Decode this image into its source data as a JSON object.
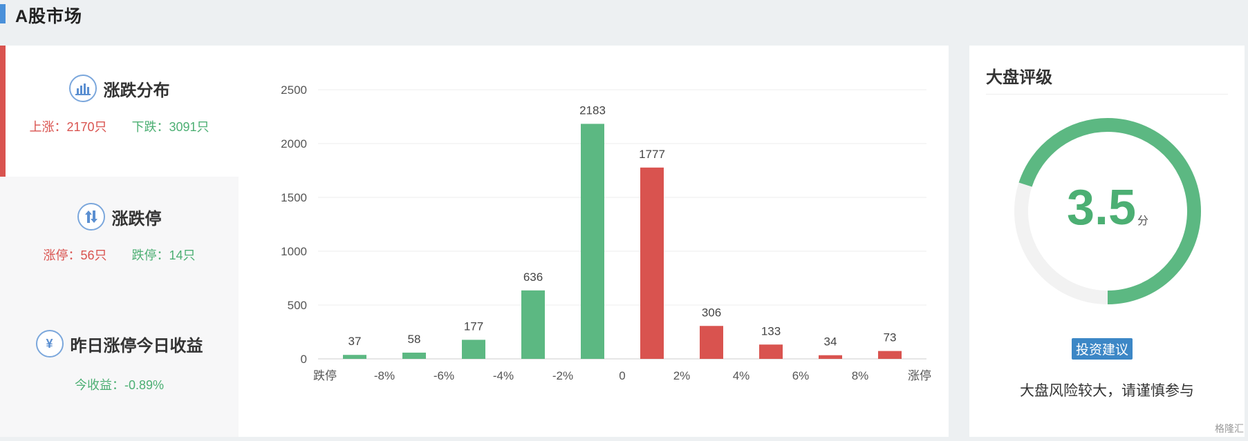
{
  "header": {
    "title": "A股市场"
  },
  "sidebar": {
    "cards": [
      {
        "title": "涨跌分布",
        "icon": "bar-chart-icon",
        "stats": [
          {
            "label": "上涨：",
            "value": "2170只",
            "color": "#d9534f"
          },
          {
            "label": "下跌：",
            "value": "3091只",
            "color": "#4caf73"
          }
        ]
      },
      {
        "title": "涨跌停",
        "icon": "up-down-arrows-icon",
        "stats": [
          {
            "label": "涨停：",
            "value": "56只",
            "color": "#d9534f"
          },
          {
            "label": "跌停：",
            "value": "14只",
            "color": "#4caf73"
          }
        ]
      },
      {
        "title": "昨日涨停今日收益",
        "icon": "yen-icon",
        "stats": [
          {
            "label": "今收益：",
            "value": "-0.89%",
            "color": "#4caf73"
          }
        ]
      }
    ]
  },
  "chart_data": {
    "type": "bar",
    "categories": [
      "跌停",
      "-8%",
      "-6%",
      "-4%",
      "-2%",
      "0",
      "2%",
      "4%",
      "6%",
      "8%",
      "涨停"
    ],
    "bars": [
      {
        "value": 37,
        "color": "#5cb882"
      },
      {
        "value": 58,
        "color": "#5cb882"
      },
      {
        "value": 177,
        "color": "#5cb882"
      },
      {
        "value": 636,
        "color": "#5cb882"
      },
      {
        "value": 2183,
        "color": "#5cb882"
      },
      {
        "value": 1777,
        "color": "#d9534f"
      },
      {
        "value": 306,
        "color": "#d9534f"
      },
      {
        "value": 133,
        "color": "#d9534f"
      },
      {
        "value": 34,
        "color": "#d9534f"
      },
      {
        "value": 73,
        "color": "#d9534f"
      }
    ],
    "yticks": [
      0,
      500,
      1000,
      1500,
      2000,
      2500
    ],
    "ylim": [
      0,
      2500
    ],
    "grid": true
  },
  "rating": {
    "title": "大盘评级",
    "score": "3.5",
    "unit": "分",
    "score_value": 3.5,
    "score_max": 5,
    "advice_label": "投资建议",
    "advice_text": "大盘风险较大，请谨慎参与",
    "gauge_color": "#5cb882",
    "track_color": "#f2f2f2"
  },
  "watermark": "格隆汇"
}
